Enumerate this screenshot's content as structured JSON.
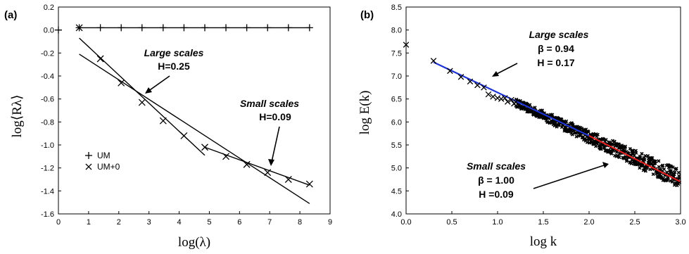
{
  "chart_data": [
    {
      "panel": "(a)",
      "type": "line",
      "xlabel": "log(λ)",
      "ylabel": "log⟨Rλ⟩",
      "xlim": [
        0,
        9
      ],
      "ylim": [
        -1.6,
        0.2
      ],
      "xticks": [
        "0",
        "1",
        "2",
        "3",
        "4",
        "5",
        "6",
        "7",
        "8",
        "9"
      ],
      "yticks": [
        "0.2",
        "0.0",
        "-0.2",
        "-0.4",
        "-0.6",
        "-0.8",
        "-1.0",
        "-1.2",
        "-1.4",
        "-1.6"
      ],
      "legend_position": "bottom-left",
      "series": [
        {
          "name": "UM",
          "marker": "plus",
          "x": [
            0,
            0.69,
            1.39,
            2.08,
            2.77,
            3.47,
            4.16,
            4.85,
            5.55,
            6.24,
            6.93,
            7.62,
            8.32
          ],
          "y": [
            0.0,
            0.02,
            0.02,
            0.02,
            0.02,
            0.02,
            0.02,
            0.02,
            0.02,
            0.02,
            0.02,
            0.02,
            0.02
          ]
        },
        {
          "name": "UM+0",
          "marker": "x",
          "x": [
            0.69,
            1.39,
            2.08,
            2.77,
            3.47,
            4.16,
            4.85,
            5.55,
            6.24,
            6.93,
            7.62,
            8.32
          ],
          "y": [
            0.02,
            -0.25,
            -0.46,
            -0.63,
            -0.79,
            -0.92,
            -1.02,
            -1.1,
            -1.17,
            -1.24,
            -1.3,
            -1.34
          ]
        }
      ],
      "fit_lines": [
        {
          "x": [
            0.69,
            8.32
          ],
          "y": [
            0.02,
            0.02
          ]
        },
        {
          "x": [
            0.69,
            4.85
          ],
          "y": [
            -0.07,
            -1.09
          ]
        },
        {
          "x": [
            0.69,
            8.32
          ],
          "y": [
            -0.21,
            -1.51
          ]
        },
        {
          "x": [
            4.85,
            8.32
          ],
          "y": [
            -1.02,
            -1.35
          ]
        }
      ],
      "annotations": [
        {
          "lines": [
            "Large scales",
            "H=0.25"
          ],
          "arrow_to": [
            2.9,
            -0.53
          ]
        },
        {
          "lines": [
            "Small scales",
            "H=0.09"
          ],
          "arrow_to": [
            7.0,
            -1.23
          ]
        }
      ]
    },
    {
      "panel": "(b)",
      "type": "line",
      "xlabel": "log k",
      "ylabel": "log E(k)",
      "xlim": [
        0,
        3.0
      ],
      "ylim": [
        4.0,
        8.5
      ],
      "xticks": [
        "0.0",
        "0.5",
        "1.0",
        "1.5",
        "2.0",
        "2.5",
        "3.0"
      ],
      "yticks": [
        "8.5",
        "8.0",
        "7.5",
        "7.0",
        "6.5",
        "6.0",
        "5.5",
        "5.0",
        "4.5",
        "4.0"
      ],
      "series": [
        {
          "marker": "x",
          "x": [
            0.0,
            0.3,
            0.48,
            0.6,
            0.7,
            0.78,
            0.85,
            0.9,
            0.95,
            1.0,
            1.04,
            1.08,
            1.11,
            1.15,
            1.18,
            1.2
          ],
          "y": [
            7.68,
            7.33,
            7.11,
            6.98,
            6.88,
            6.8,
            6.75,
            6.6,
            6.55,
            6.52,
            6.5,
            6.52,
            6.44,
            6.48,
            6.4,
            6.43
          ]
        }
      ],
      "band": {
        "x": [
          1.2,
          3.0
        ],
        "y": [
          6.42,
          4.75
        ],
        "spread": 0.14
      },
      "fit_lines": [
        {
          "color": "#1f35d6",
          "x": [
            0.3,
            2.0
          ],
          "y": [
            7.3,
            5.7
          ]
        },
        {
          "color": "#e02020",
          "x": [
            2.0,
            3.0
          ],
          "y": [
            5.7,
            4.7
          ]
        }
      ],
      "annotations": [
        {
          "lines": [
            "Large scales",
            "β = 0.94",
            "H = 0.17"
          ],
          "arrow_to": [
            0.83,
            6.92
          ]
        },
        {
          "lines": [
            "Small scales",
            "β = 1.00",
            "H =0.09"
          ],
          "arrow_to": [
            2.27,
            5.47
          ]
        }
      ]
    }
  ]
}
